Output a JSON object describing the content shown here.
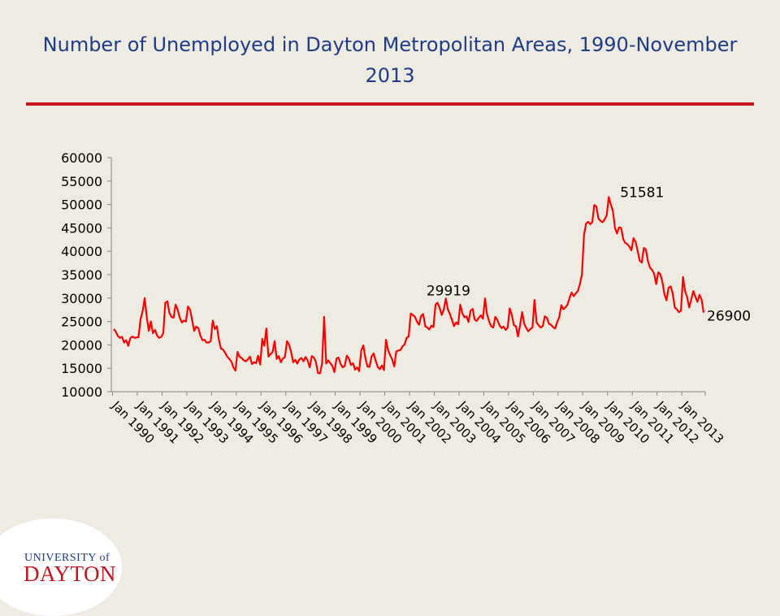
{
  "slide": {
    "title": "Number of Unemployed in Dayton Metropolitan Areas, 1990-November 2013"
  },
  "logo": {
    "top_text": "UNIVERSITY of",
    "main_text": "DAYTON",
    "colors": {
      "primary": "#c4161c",
      "secondary": "#1f3c88"
    }
  },
  "colors": {
    "background": "#eeebe3",
    "title": "#1f3c88",
    "rule": "#c4161c",
    "series": "#ff0000"
  },
  "chart_data": {
    "type": "line",
    "title": "",
    "xlabel": "",
    "ylabel": "",
    "ylim": [
      10000,
      60000
    ],
    "yticks": [
      10000,
      15000,
      20000,
      25000,
      30000,
      35000,
      40000,
      45000,
      50000,
      55000,
      60000
    ],
    "xtick_labels": [
      "Jan 1990",
      "Jan 1991",
      "Jan 1992",
      "Jan 1993",
      "Jan 1994",
      "Jan 1995",
      "Jan 1996",
      "Jan 1997",
      "Jan 1998",
      "Jan 1999",
      "Jan 2000",
      "Jan 2001",
      "Jan 2002",
      "Jan 2003",
      "Jan 2004",
      "Jan 2005",
      "Jan 2006",
      "Jan 2007",
      "Jan 2008",
      "Jan 2009",
      "Jan 2010",
      "Jan 2011",
      "Jan 2012",
      "Jan 2013"
    ],
    "grid": false,
    "legend": "none",
    "x_start": "Jan 1990",
    "x_end": "Nov 2013",
    "series": [
      {
        "values": [
          23400,
          22800,
          21900,
          21500,
          21700,
          20500,
          21000,
          19800,
          21400,
          21800,
          21500,
          21600,
          21600,
          25500,
          27200,
          30000,
          26000,
          23000,
          25000,
          22500,
          23200,
          22000,
          21500,
          21700,
          22500,
          29000,
          29300,
          26800,
          26000,
          25800,
          28600,
          27500,
          25800,
          24800,
          25200,
          25000,
          28200,
          27500,
          25300,
          23000,
          23900,
          23600,
          22000,
          21000,
          21100,
          20500,
          20500,
          20800,
          25200,
          23400,
          24000,
          21000,
          19200,
          19000,
          18300,
          17500,
          17000,
          16500,
          15200,
          14500,
          18500,
          17500,
          17200,
          16700,
          16500,
          16900,
          17500,
          15900,
          16300,
          16100,
          17700,
          15800,
          21300,
          19800,
          23500,
          17500,
          18000,
          18500,
          20800,
          17000,
          17600,
          16300,
          17100,
          17400,
          20800,
          20000,
          18500,
          16300,
          16800,
          16000,
          16900,
          17200,
          16500,
          17400,
          16700,
          15200,
          17600,
          17300,
          16400,
          14000,
          13900,
          16000,
          26000,
          16000,
          16700,
          16100,
          15500,
          14200,
          17100,
          17300,
          15900,
          15200,
          15500,
          17700,
          17100,
          15700,
          16100,
          14700,
          15200,
          14400,
          18800,
          19900,
          17200,
          15400,
          15300,
          17500,
          18200,
          16600,
          15300,
          14800,
          15600,
          14600,
          21100,
          18900,
          17800,
          16900,
          15400,
          18600,
          18800,
          18900,
          19700,
          20100,
          21500,
          21800,
          26700,
          26400,
          26000,
          25000,
          24300,
          26200,
          26600,
          24000,
          23700,
          23300,
          24100,
          23800,
          28600,
          29000,
          27900,
          26400,
          27500,
          29900,
          27600,
          26600,
          25300,
          24000,
          24800,
          24400,
          28600,
          26800,
          25900,
          26100,
          24900,
          27300,
          27700,
          25400,
          25100,
          25800,
          26300,
          25600,
          29919,
          26500,
          25000,
          24000,
          23700,
          26000,
          25300,
          24200,
          23600,
          23900,
          23200,
          23700,
          27800,
          26400,
          24200,
          24000,
          21800,
          24200,
          27000,
          24500,
          23600,
          22900,
          23400,
          23700,
          29600,
          24800,
          24200,
          23700,
          24000,
          26100,
          25800,
          24500,
          24300,
          23800,
          23500,
          24900,
          25900,
          28500,
          27600,
          28000,
          28600,
          30000,
          31200,
          30400,
          31000,
          31500,
          33000,
          35000,
          43500,
          45900,
          46300,
          45800,
          46200,
          49900,
          49500,
          47000,
          46500,
          46200,
          46800,
          47700,
          51581,
          50000,
          48600,
          45000,
          43800,
          45100,
          45000,
          42600,
          41800,
          41500,
          41000,
          40200,
          42800,
          42000,
          40100,
          38000,
          37600,
          40700,
          40400,
          37900,
          36500,
          36000,
          35200,
          33000,
          35500,
          35100,
          33500,
          30800,
          29500,
          32200,
          32500,
          31000,
          28000,
          27600,
          27000,
          27300,
          34500,
          31500,
          30200,
          28000,
          29700,
          31500,
          30300,
          29200,
          30700,
          29700,
          26900
        ]
      }
    ],
    "annotations": [
      {
        "label": "29919",
        "x": "Jan 2005",
        "y": 29919
      },
      {
        "label": "51581",
        "x": "Jan 2010",
        "y": 51581
      },
      {
        "label": "26900",
        "x": "Nov 2013",
        "y": 26900
      }
    ]
  }
}
